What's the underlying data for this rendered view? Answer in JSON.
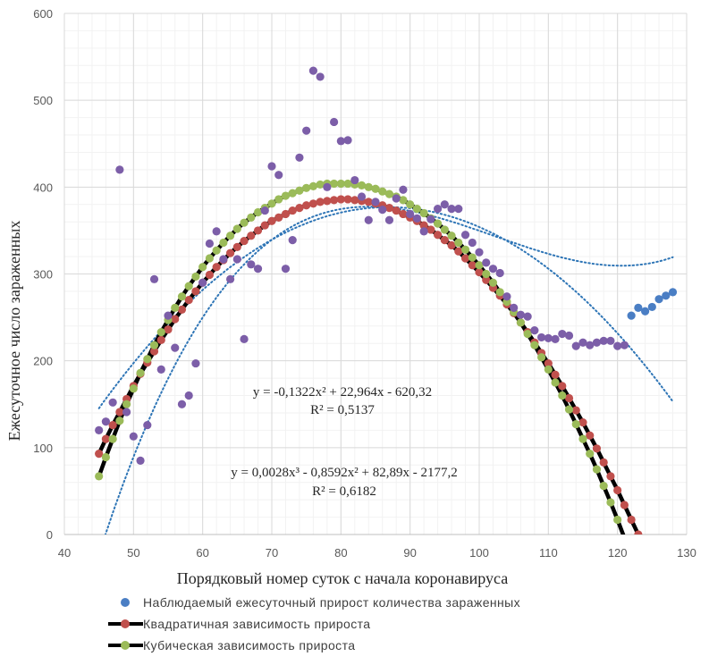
{
  "chart_data": {
    "type": "scatter",
    "title": "",
    "xlabel": "Порядковый номер суток с начала коронавируса",
    "ylabel": "Ежесуточное число зараженных",
    "xlim": [
      40,
      130
    ],
    "ylim": [
      0,
      600
    ],
    "x_ticks": [
      40,
      50,
      60,
      70,
      80,
      90,
      100,
      110,
      120,
      130
    ],
    "y_ticks": [
      0,
      100,
      200,
      300,
      400,
      500,
      600
    ],
    "grid": true,
    "minor_grid": true,
    "legend_position": "bottom",
    "colors": {
      "observed": "#4a7ec4",
      "observed_early": "#7c5ea8",
      "quadratic": "#c0504d",
      "cubic": "#9bbb59",
      "fit_line": "#000000",
      "trend": "#2e75b6",
      "grid": "#e6e6e6",
      "axis": "#bfbfbf"
    },
    "equations": [
      {
        "text": "y = -0,1322x² + 22,964x - 620,32",
        "r2": "R² = 0,5137"
      },
      {
        "text": "y = 0,0028x³ - 0,8592x² + 82,89x - 2177,2",
        "r2": "R² = 0,6182"
      }
    ],
    "series": [
      {
        "name": "Наблюдаемый ежесуточный прирост количества зараженных",
        "kind": "scatter",
        "x": [
          45,
          46,
          47,
          48,
          49,
          50,
          51,
          52,
          53,
          54,
          55,
          56,
          57,
          58,
          59,
          60,
          61,
          62,
          63,
          64,
          65,
          66,
          67,
          68,
          69,
          70,
          71,
          72,
          73,
          74,
          75,
          76,
          77,
          78,
          79,
          80,
          81,
          82,
          83,
          84,
          85,
          86,
          87,
          88,
          89,
          90,
          91,
          92,
          93,
          94,
          95,
          96,
          97,
          98,
          99,
          100,
          101,
          102,
          103,
          104,
          105,
          106,
          107,
          108,
          109,
          110,
          111,
          112,
          113,
          114,
          115,
          116,
          117,
          118,
          119,
          120,
          121,
          122,
          123,
          124,
          125,
          126,
          127,
          128
        ],
        "y": [
          120,
          130,
          152,
          420,
          141,
          113,
          85,
          126,
          294,
          190,
          252,
          215,
          150,
          160,
          197,
          290,
          335,
          349,
          317,
          294,
          317,
          225,
          311,
          306,
          373,
          424,
          414,
          306,
          339,
          434,
          465,
          534,
          527,
          400,
          475,
          453,
          454,
          408,
          389,
          362,
          383,
          374,
          362,
          387,
          397,
          369,
          364,
          349,
          363,
          375,
          380,
          375,
          375,
          345,
          336,
          325,
          313,
          306,
          301,
          274,
          261,
          253,
          251,
          235,
          227,
          226,
          225,
          231,
          229,
          217,
          221,
          218,
          221,
          223,
          223,
          217,
          218,
          252,
          261,
          257,
          262,
          271,
          275,
          279
        ]
      },
      {
        "name": "Квадратичная зависимость прироста",
        "kind": "fit",
        "x": [
          45,
          46,
          47,
          48,
          49,
          50,
          51,
          52,
          53,
          54,
          55,
          56,
          57,
          58,
          59,
          60,
          61,
          62,
          63,
          64,
          65,
          66,
          67,
          68,
          69,
          70,
          71,
          72,
          73,
          74,
          75,
          76,
          77,
          78,
          79,
          80,
          81,
          82,
          83,
          84,
          85,
          86,
          87,
          88,
          89,
          90,
          91,
          92,
          93,
          94,
          95,
          96,
          97,
          98,
          99,
          100,
          101,
          102,
          103,
          104,
          105,
          106,
          107,
          108,
          109,
          110,
          111,
          112,
          113,
          114,
          115,
          116,
          117,
          118,
          119,
          120,
          121,
          122,
          123,
          124
        ],
        "y": [
          93,
          110,
          126,
          141,
          156,
          171,
          185,
          198,
          211,
          224,
          236,
          248,
          259,
          270,
          280,
          290,
          299,
          308,
          316,
          324,
          331,
          338,
          344,
          350,
          356,
          361,
          365,
          369,
          373,
          376,
          379,
          381,
          383,
          384,
          385,
          386,
          386,
          385,
          384,
          383,
          381,
          379,
          376,
          373,
          369,
          365,
          361,
          356,
          351,
          345,
          339,
          333,
          326,
          318,
          310,
          302,
          293,
          284,
          275,
          265,
          255,
          244,
          233,
          221,
          209,
          197,
          184,
          171,
          157,
          143,
          129,
          114,
          99,
          83,
          67,
          51,
          34,
          17,
          0,
          -18
        ]
      },
      {
        "name": "Кубическая зависимость прироста",
        "kind": "fit",
        "x": [
          45,
          46,
          47,
          48,
          49,
          50,
          51,
          52,
          53,
          54,
          55,
          56,
          57,
          58,
          59,
          60,
          61,
          62,
          63,
          64,
          65,
          66,
          67,
          68,
          69,
          70,
          71,
          72,
          73,
          74,
          75,
          76,
          77,
          78,
          79,
          80,
          81,
          82,
          83,
          84,
          85,
          86,
          87,
          88,
          89,
          90,
          91,
          92,
          93,
          94,
          95,
          96,
          97,
          98,
          99,
          100,
          101,
          102,
          103,
          104,
          105,
          106,
          107,
          108,
          109,
          110,
          111,
          112,
          113,
          114,
          115,
          116,
          117,
          118,
          119,
          120,
          121,
          122,
          123
        ],
        "y": [
          67,
          89,
          110,
          131,
          150,
          168,
          186,
          202,
          218,
          233,
          247,
          261,
          274,
          286,
          297,
          308,
          318,
          327,
          336,
          344,
          352,
          359,
          365,
          371,
          376,
          381,
          386,
          390,
          393,
          396,
          399,
          401,
          403,
          404,
          404,
          404,
          404,
          403,
          402,
          400,
          398,
          395,
          392,
          389,
          385,
          380,
          375,
          370,
          364,
          358,
          351,
          344,
          336,
          328,
          319,
          310,
          300,
          290,
          279,
          268,
          256,
          244,
          231,
          218,
          204,
          190,
          175,
          160,
          144,
          127,
          110,
          93,
          75,
          56,
          37,
          17,
          -4,
          -25,
          -47
        ]
      }
    ]
  }
}
